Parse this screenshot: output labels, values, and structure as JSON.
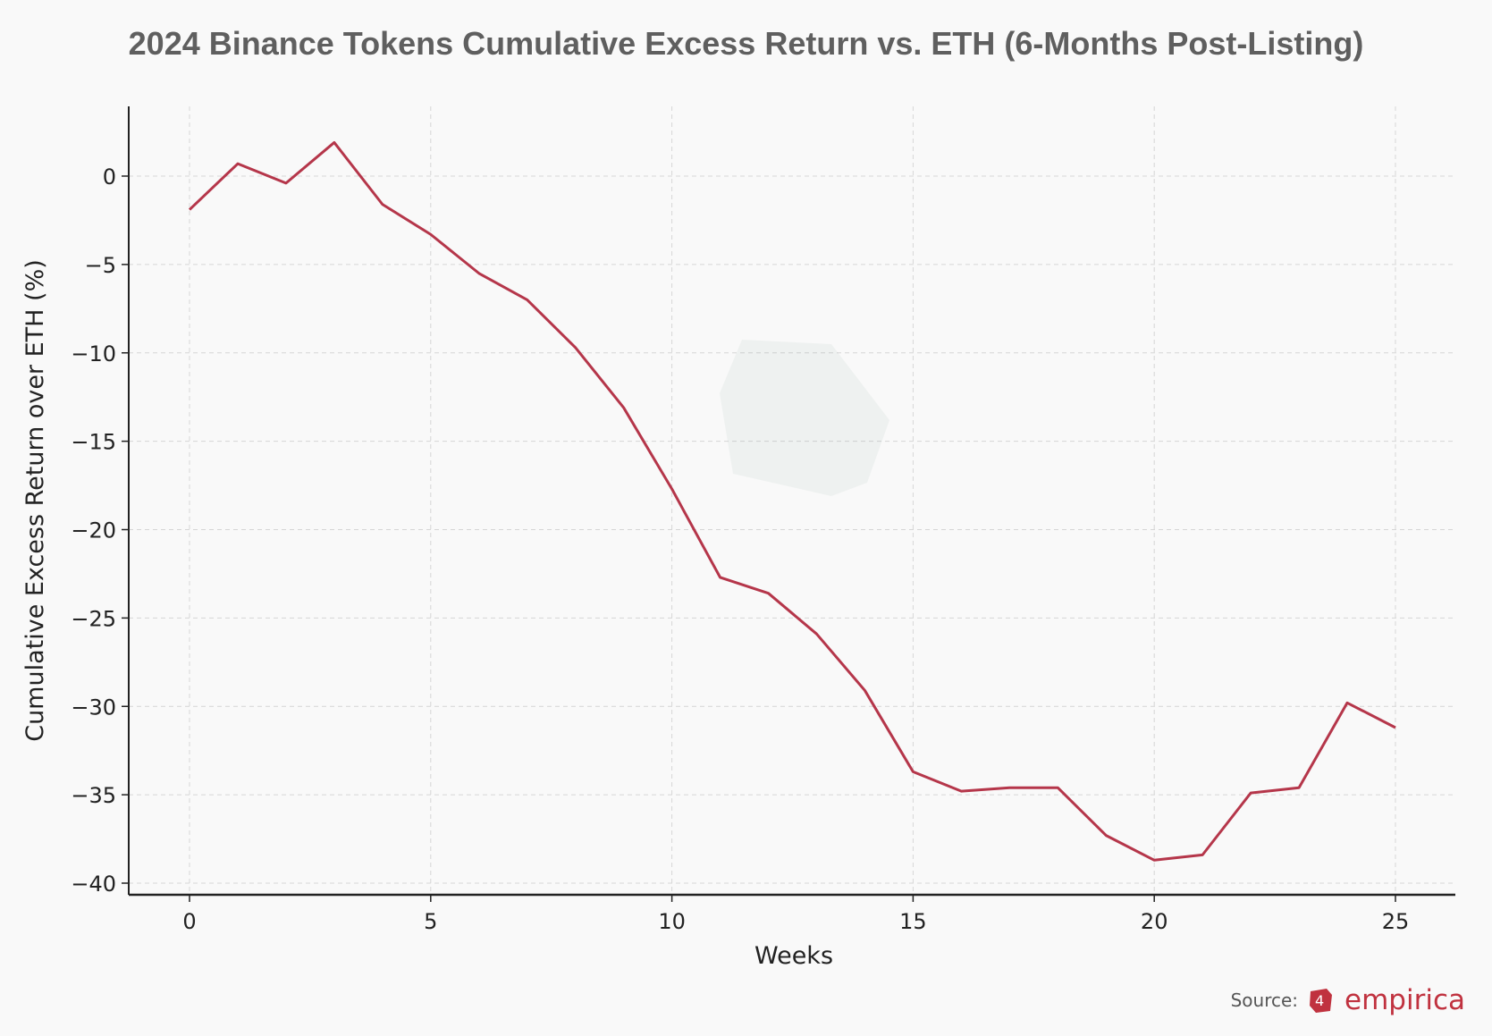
{
  "chart_data": {
    "type": "line",
    "title": "2024 Binance Tokens Cumulative Excess Return vs. ETH (6-Months Post-Listing)",
    "xlabel": "Weeks",
    "ylabel": "Cumulative Excess Return over ETH (%)",
    "xlim": [
      -1.3,
      26.3
    ],
    "ylim": [
      -40.7,
      3.9
    ],
    "xticks": [
      0,
      5,
      10,
      15,
      20,
      25
    ],
    "yticks": [
      0,
      -5,
      -10,
      -15,
      -20,
      -25,
      -30,
      -35,
      -40
    ],
    "ytick_labels": [
      "0",
      "−5",
      "−10",
      "−15",
      "−20",
      "−25",
      "−30",
      "−35",
      "−40"
    ],
    "grid": true,
    "x": [
      0,
      1,
      2,
      3,
      4,
      5,
      6,
      7,
      8,
      9,
      10,
      11,
      12,
      13,
      14,
      15,
      16,
      17,
      18,
      19,
      20,
      21,
      22,
      23,
      24,
      25
    ],
    "series": [
      {
        "values": [
          -1.9,
          0.7,
          -0.4,
          1.9,
          -1.6,
          -3.3,
          -5.5,
          -7.0,
          -9.7,
          -13.1,
          -17.7,
          -22.7,
          -23.6,
          -25.9,
          -29.1,
          -33.7,
          -34.8,
          -34.6,
          -34.6,
          -37.3,
          -38.7,
          -38.4,
          -34.9,
          -34.6,
          -29.8,
          -31.2
        ],
        "color": "#b5364a"
      }
    ]
  },
  "source": {
    "label": "Source:",
    "brand": "empirica",
    "brand_color": "#c0323f"
  }
}
